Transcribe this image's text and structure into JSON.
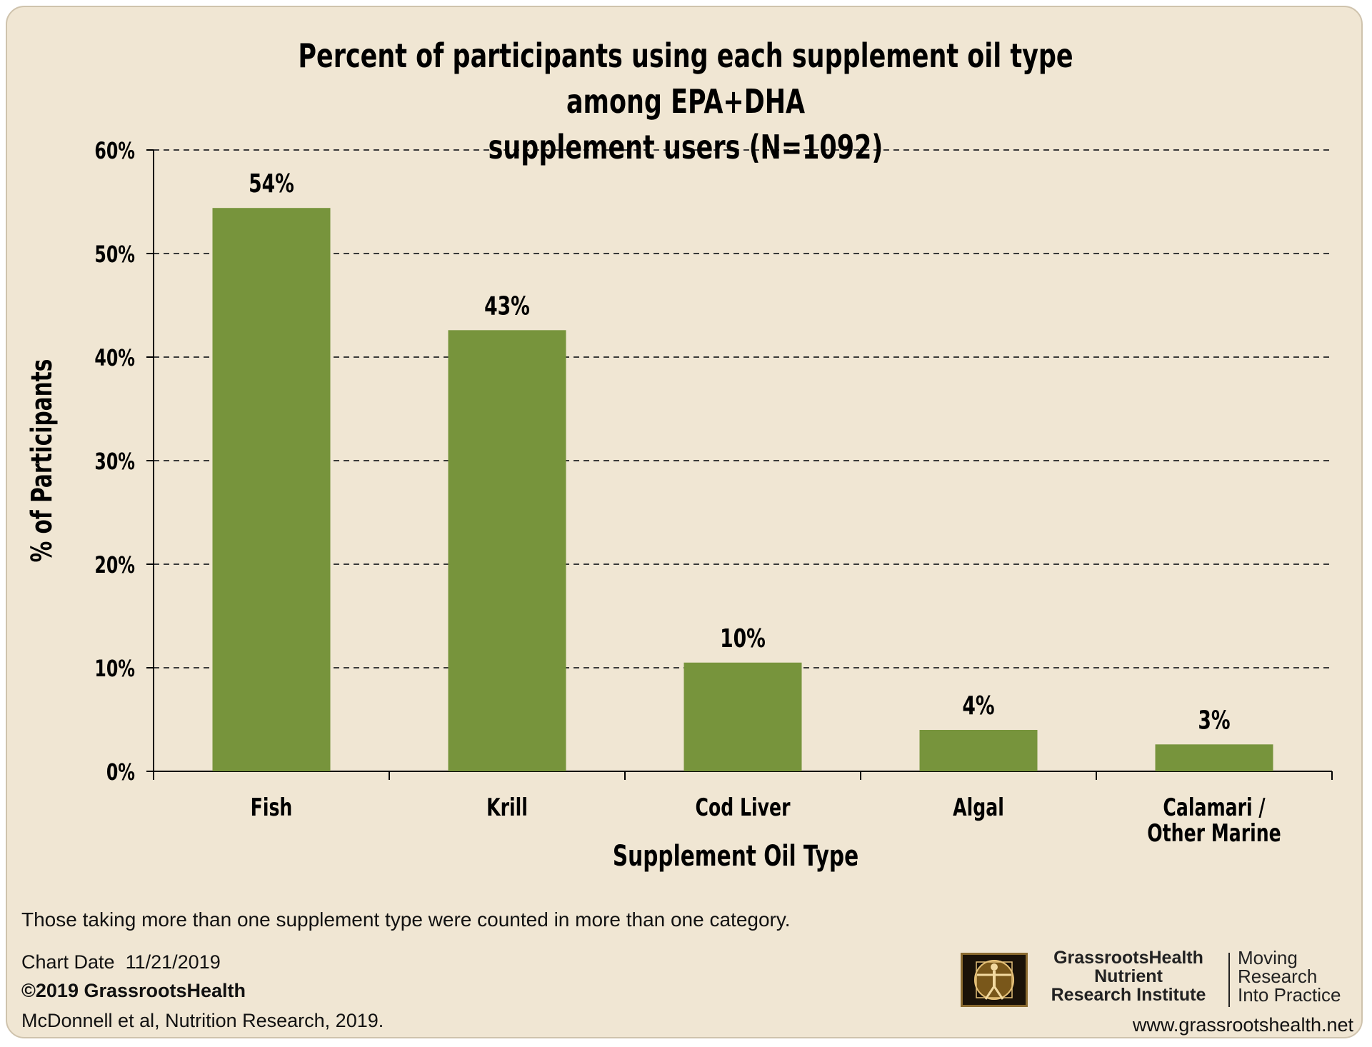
{
  "title_lines": [
    "Percent of participants using each supplement oil type among EPA+DHA",
    "supplement users (N=1092)"
  ],
  "chart_data": {
    "type": "bar",
    "title": "Percent of participants using each supplement oil type among EPA+DHA supplement users (N=1092)",
    "categories": [
      [
        "Fish"
      ],
      [
        "Krill"
      ],
      [
        "Cod Liver"
      ],
      [
        "Algal"
      ],
      [
        "Calamari /",
        "Other Marine"
      ]
    ],
    "values": [
      54.4,
      42.6,
      10.5,
      4.0,
      2.6
    ],
    "data_labels": [
      "54%",
      "43%",
      "10%",
      "4%",
      "3%"
    ],
    "xlabel": "Supplement Oil Type",
    "ylabel": "% of Participants",
    "ylim": [
      0,
      60
    ],
    "yticks": [
      "0%",
      "10%",
      "20%",
      "30%",
      "40%",
      "50%",
      "60%"
    ],
    "grid": true,
    "legend": "none",
    "bar_color": "#77943c"
  },
  "footnote": "Those taking more than one supplement type were counted in more than one category.",
  "chart_date_label": "Chart Date",
  "chart_date": "11/21/2019",
  "copyright": "©2019 GrassrootsHealth",
  "citation": "McDonnell et al, Nutrition Research, 2019.",
  "brand": {
    "name_lines": [
      "GrassrootsHealth",
      "Nutrient",
      "Research Institute"
    ],
    "tagline_lines": [
      "Moving",
      "Research",
      "Into Practice"
    ],
    "url": "www.grassrootshealth.net"
  }
}
